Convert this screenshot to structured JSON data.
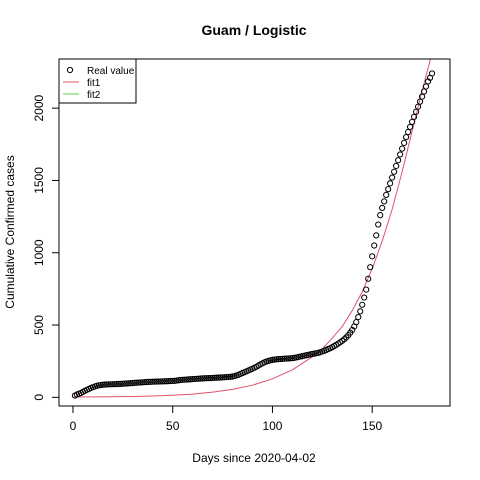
{
  "chart_data": {
    "type": "scatter",
    "title": "Guam / Logistic",
    "xlabel": "Days since 2020-04-02",
    "ylabel": "Cumulative Confirmed cases",
    "xlim": [
      -7,
      189
    ],
    "ylim": [
      -60,
      2340
    ],
    "xticks": [
      0,
      50,
      100,
      150
    ],
    "yticks": [
      0,
      500,
      1000,
      1500,
      2000
    ],
    "grid": false,
    "legend": {
      "position": "top-left",
      "entries": [
        {
          "name": "Real value",
          "style": "circle",
          "color": "#000000"
        },
        {
          "name": "fit1",
          "style": "line",
          "color": "#DF536B"
        },
        {
          "name": "fit2",
          "style": "line",
          "color": "#61D04F"
        }
      ]
    },
    "series": [
      {
        "name": "Real value",
        "type": "scatter",
        "color": "#000000",
        "points": [
          [
            1,
            12
          ],
          [
            2,
            20
          ],
          [
            3,
            25
          ],
          [
            4,
            30
          ],
          [
            5,
            38
          ],
          [
            6,
            45
          ],
          [
            7,
            52
          ],
          [
            8,
            58
          ],
          [
            9,
            65
          ],
          [
            10,
            70
          ],
          [
            11,
            75
          ],
          [
            12,
            80
          ],
          [
            13,
            83
          ],
          [
            14,
            85
          ],
          [
            15,
            87
          ],
          [
            16,
            88
          ],
          [
            17,
            89
          ],
          [
            18,
            90
          ],
          [
            19,
            90
          ],
          [
            20,
            91
          ],
          [
            21,
            91
          ],
          [
            22,
            92
          ],
          [
            23,
            92
          ],
          [
            24,
            93
          ],
          [
            25,
            94
          ],
          [
            26,
            95
          ],
          [
            27,
            96
          ],
          [
            28,
            97
          ],
          [
            29,
            98
          ],
          [
            30,
            99
          ],
          [
            31,
            100
          ],
          [
            32,
            101
          ],
          [
            33,
            102
          ],
          [
            34,
            103
          ],
          [
            35,
            104
          ],
          [
            36,
            105
          ],
          [
            37,
            106
          ],
          [
            38,
            107
          ],
          [
            39,
            107
          ],
          [
            40,
            108
          ],
          [
            41,
            108
          ],
          [
            42,
            109
          ],
          [
            43,
            109
          ],
          [
            44,
            110
          ],
          [
            45,
            110
          ],
          [
            46,
            111
          ],
          [
            47,
            111
          ],
          [
            48,
            112
          ],
          [
            49,
            113
          ],
          [
            50,
            113
          ],
          [
            51,
            114
          ],
          [
            52,
            116
          ],
          [
            53,
            118
          ],
          [
            54,
            120
          ],
          [
            55,
            121
          ],
          [
            56,
            122
          ],
          [
            57,
            123
          ],
          [
            58,
            124
          ],
          [
            59,
            125
          ],
          [
            60,
            126
          ],
          [
            61,
            127
          ],
          [
            62,
            128
          ],
          [
            63,
            129
          ],
          [
            64,
            130
          ],
          [
            65,
            131
          ],
          [
            66,
            132
          ],
          [
            67,
            132
          ],
          [
            68,
            133
          ],
          [
            69,
            133
          ],
          [
            70,
            134
          ],
          [
            71,
            135
          ],
          [
            72,
            136
          ],
          [
            73,
            136
          ],
          [
            74,
            137
          ],
          [
            75,
            138
          ],
          [
            76,
            139
          ],
          [
            77,
            140
          ],
          [
            78,
            141
          ],
          [
            79,
            142
          ],
          [
            80,
            144
          ],
          [
            81,
            147
          ],
          [
            82,
            151
          ],
          [
            83,
            156
          ],
          [
            84,
            162
          ],
          [
            85,
            168
          ],
          [
            86,
            174
          ],
          [
            87,
            180
          ],
          [
            88,
            186
          ],
          [
            89,
            192
          ],
          [
            90,
            198
          ],
          [
            91,
            205
          ],
          [
            92,
            212
          ],
          [
            93,
            220
          ],
          [
            94,
            228
          ],
          [
            95,
            235
          ],
          [
            96,
            242
          ],
          [
            97,
            248
          ],
          [
            98,
            252
          ],
          [
            99,
            256
          ],
          [
            100,
            259
          ],
          [
            101,
            261
          ],
          [
            102,
            263
          ],
          [
            103,
            264
          ],
          [
            104,
            265
          ],
          [
            105,
            266
          ],
          [
            106,
            267
          ],
          [
            107,
            268
          ],
          [
            108,
            269
          ],
          [
            109,
            270
          ],
          [
            110,
            271
          ],
          [
            111,
            273
          ],
          [
            112,
            276
          ],
          [
            113,
            279
          ],
          [
            114,
            282
          ],
          [
            115,
            285
          ],
          [
            116,
            288
          ],
          [
            117,
            291
          ],
          [
            118,
            294
          ],
          [
            119,
            297
          ],
          [
            120,
            300
          ],
          [
            121,
            302
          ],
          [
            122,
            305
          ],
          [
            123,
            308
          ],
          [
            124,
            312
          ],
          [
            125,
            317
          ],
          [
            126,
            322
          ],
          [
            127,
            328
          ],
          [
            128,
            334
          ],
          [
            129,
            340
          ],
          [
            130,
            347
          ],
          [
            131,
            355
          ],
          [
            132,
            363
          ],
          [
            133,
            372
          ],
          [
            134,
            381
          ],
          [
            135,
            391
          ],
          [
            136,
            402
          ],
          [
            137,
            415
          ],
          [
            138,
            430
          ],
          [
            139,
            447
          ],
          [
            140,
            466
          ],
          [
            141,
            490
          ],
          [
            142,
            520
          ],
          [
            143,
            555
          ],
          [
            144,
            595
          ],
          [
            145,
            640
          ],
          [
            146,
            690
          ],
          [
            147,
            745
          ],
          [
            148,
            820
          ],
          [
            149,
            900
          ],
          [
            150,
            975
          ],
          [
            151,
            1050
          ],
          [
            152,
            1120
          ],
          [
            153,
            1195
          ],
          [
            154,
            1260
          ],
          [
            155,
            1310
          ],
          [
            156,
            1355
          ],
          [
            157,
            1400
          ],
          [
            158,
            1440
          ],
          [
            159,
            1480
          ],
          [
            160,
            1520
          ],
          [
            161,
            1560
          ],
          [
            162,
            1600
          ],
          [
            163,
            1640
          ],
          [
            164,
            1680
          ],
          [
            165,
            1720
          ],
          [
            166,
            1760
          ],
          [
            167,
            1800
          ],
          [
            168,
            1835
          ],
          [
            169,
            1870
          ],
          [
            170,
            1905
          ],
          [
            171,
            1940
          ],
          [
            172,
            1975
          ],
          [
            173,
            2010
          ],
          [
            174,
            2045
          ],
          [
            175,
            2080
          ],
          [
            176,
            2115
          ],
          [
            177,
            2150
          ],
          [
            178,
            2185
          ],
          [
            179,
            2210
          ],
          [
            180,
            2240
          ]
        ]
      },
      {
        "name": "fit1",
        "type": "line",
        "color": "#DF536B",
        "points": [
          [
            0,
            2
          ],
          [
            10,
            3
          ],
          [
            20,
            4
          ],
          [
            30,
            6
          ],
          [
            40,
            9
          ],
          [
            50,
            14
          ],
          [
            60,
            22
          ],
          [
            70,
            36
          ],
          [
            80,
            55
          ],
          [
            90,
            84
          ],
          [
            100,
            128
          ],
          [
            110,
            190
          ],
          [
            120,
            280
          ],
          [
            125,
            335
          ],
          [
            130,
            410
          ],
          [
            135,
            490
          ],
          [
            140,
            600
          ],
          [
            145,
            730
          ],
          [
            150,
            890
          ],
          [
            155,
            1080
          ],
          [
            160,
            1300
          ],
          [
            165,
            1560
          ],
          [
            170,
            1840
          ],
          [
            175,
            2120
          ],
          [
            180,
            2380
          ],
          [
            184,
            2560
          ]
        ]
      },
      {
        "name": "fit2",
        "type": "line",
        "color": "#61D04F",
        "points": []
      }
    ]
  }
}
